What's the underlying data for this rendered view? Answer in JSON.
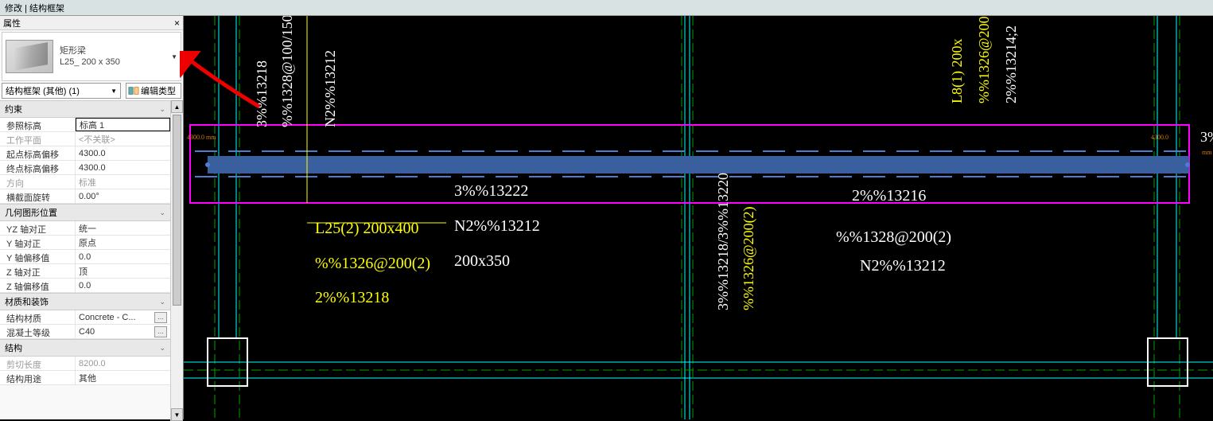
{
  "titlebar": "修改 | 结构框架",
  "props": {
    "title": "属性",
    "type_family": "矩形梁",
    "type_name": "L25_ 200 x 350",
    "selector": "结构框架 (其他) (1)",
    "edit_type": "编辑类型"
  },
  "sections": {
    "constraint": {
      "title": "约束",
      "rows": [
        {
          "label": "参照标高",
          "value": "标高 1",
          "selected": true
        },
        {
          "label": "工作平面",
          "value": "<不关联>",
          "dim": true
        },
        {
          "label": "起点标高偏移",
          "value": "4300.0"
        },
        {
          "label": "终点标高偏移",
          "value": "4300.0"
        },
        {
          "label": "方向",
          "value": "标准",
          "dim": true
        },
        {
          "label": "横截面旋转",
          "value": "0.00°"
        }
      ]
    },
    "geom": {
      "title": "几何图形位置",
      "rows": [
        {
          "label": "YZ 轴对正",
          "value": "统一"
        },
        {
          "label": "Y 轴对正",
          "value": "原点"
        },
        {
          "label": "Y 轴偏移值",
          "value": "0.0"
        },
        {
          "label": "Z 轴对正",
          "value": "顶"
        },
        {
          "label": "Z 轴偏移值",
          "value": "0.0"
        }
      ]
    },
    "material": {
      "title": "材质和装饰",
      "rows": [
        {
          "label": "结构材质",
          "value": "Concrete - C...",
          "btn": true
        },
        {
          "label": "混凝土等级",
          "value": "C40",
          "btn": true
        }
      ]
    },
    "struct": {
      "title": "结构",
      "rows": [
        {
          "label": "剪切长度",
          "value": "8200.0",
          "dim": true
        },
        {
          "label": "结构用途",
          "value": "其他"
        }
      ]
    }
  },
  "cad": {
    "dim_left": "4300.0 mm",
    "dim_right": "4300.0",
    "labels_yellow_left": [
      "L25(2)  200x400",
      "%%1326@200(2)",
      "2%%13218"
    ],
    "labels_white_left": [
      "3%%13222",
      "N2%%13212",
      "200x350"
    ],
    "labels_white_right": [
      "2%%13216",
      "%%1328@200(2)",
      "N2%%13212"
    ],
    "labels_yellow_vert_right": [
      "L8(1)  200x",
      "%%1326@200",
      "2%%13214;2"
    ],
    "labels_white_vert_left": [
      "3%%13218",
      "%%1328@100/150",
      "N2%%13212"
    ],
    "labels_vert_mid": [
      "3%%13218/3%%13220",
      "%%1326@200(2)"
    ],
    "colors": {
      "magenta": "#ff00ff",
      "cyan": "#00ffff",
      "blue_beam": "#3a5f9e",
      "blue_dash": "#4d7dd1",
      "green": "#00a000",
      "yellow": "#ffff00",
      "white": "#ffffff",
      "orange": "#d97d00"
    }
  }
}
